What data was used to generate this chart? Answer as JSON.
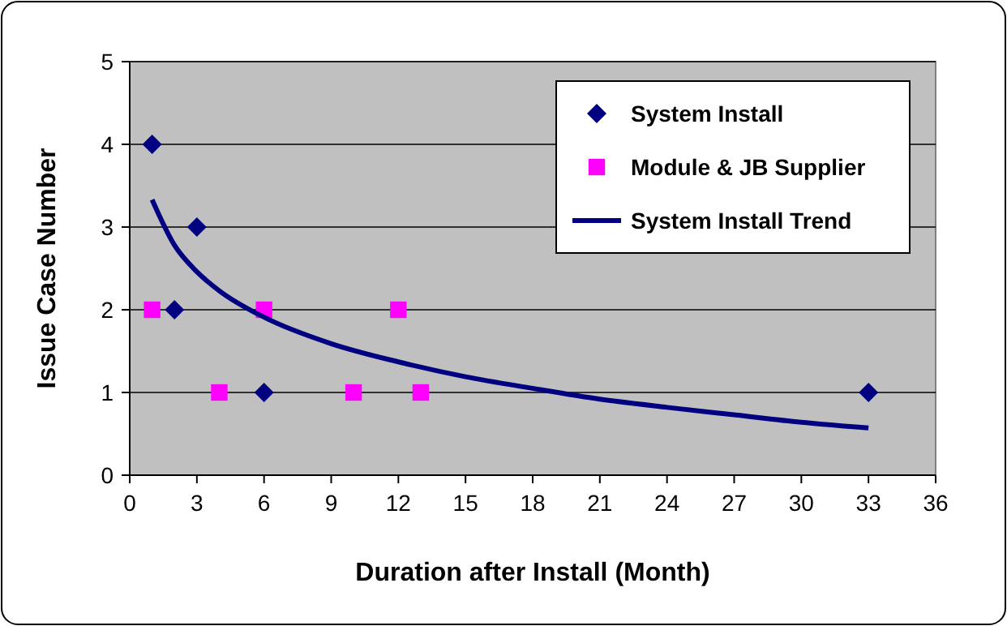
{
  "chart_data": {
    "type": "scatter",
    "xlabel": "Duration after Install (Month)",
    "ylabel": "Issue Case Number",
    "xlim": [
      0,
      36
    ],
    "xticks": [
      0,
      3,
      6,
      9,
      12,
      15,
      18,
      21,
      24,
      27,
      30,
      33,
      36
    ],
    "ylim": [
      0,
      5
    ],
    "yticks": [
      0,
      1,
      2,
      3,
      4,
      5
    ],
    "grid": "y",
    "legend": "top right",
    "series": [
      {
        "name": "System Install",
        "color": "#000080",
        "marker": "diamond",
        "x": [
          1,
          2,
          3,
          6,
          33
        ],
        "values": [
          4,
          2,
          3,
          1,
          1
        ]
      },
      {
        "name": "Module & JB Supplier",
        "color": "#ff00ff",
        "marker": "square",
        "x": [
          1,
          4,
          6,
          10,
          12,
          13
        ],
        "values": [
          2,
          1,
          2,
          1,
          2,
          1
        ]
      },
      {
        "name": "System Install Trend",
        "type": "line",
        "color": "#000080",
        "marker": "none",
        "x": [
          1,
          2,
          3,
          4,
          6,
          9,
          12,
          15,
          18,
          21,
          24,
          27,
          30,
          33
        ],
        "values": [
          3.33,
          2.78,
          2.46,
          2.23,
          1.91,
          1.59,
          1.37,
          1.19,
          1.05,
          0.92,
          0.82,
          0.73,
          0.64,
          0.57
        ]
      }
    ]
  }
}
